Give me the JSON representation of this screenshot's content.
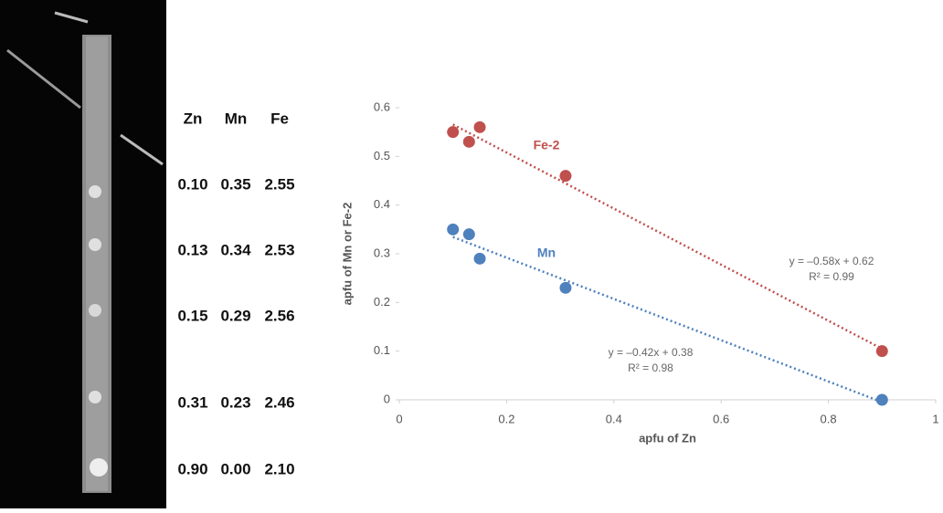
{
  "table": {
    "headers": [
      "Zn",
      "Mn",
      "Fe"
    ],
    "rows": [
      [
        "0.10",
        "0.35",
        "2.55"
      ],
      [
        "0.13",
        "0.34",
        "2.53"
      ],
      [
        "0.15",
        "0.29",
        "2.56"
      ],
      [
        "0.31",
        "0.23",
        "2.46"
      ],
      [
        "0.90",
        "0.00",
        "2.10"
      ]
    ]
  },
  "chart_data": {
    "type": "scatter",
    "x_label": "apfu of Zn",
    "y_label": "apfu of Mn or Fe-2",
    "xlim": [
      0,
      1
    ],
    "xticks": [
      0,
      0.2,
      0.4,
      0.6,
      0.8,
      1
    ],
    "ylim": [
      0,
      0.6
    ],
    "yticks": [
      0,
      0.1,
      0.2,
      0.3,
      0.4,
      0.5,
      0.6
    ],
    "trendline": "dotted",
    "series": [
      {
        "name": "Fe-2",
        "color": "#c0504d",
        "x": [
          0.1,
          0.13,
          0.15,
          0.31,
          0.9
        ],
        "values": [
          0.55,
          0.53,
          0.56,
          0.46,
          0.1
        ]
      },
      {
        "name": "Mn",
        "color": "#4f81bd",
        "x": [
          0.1,
          0.13,
          0.15,
          0.31,
          0.9
        ],
        "values": [
          0.35,
          0.34,
          0.29,
          0.23,
          0.0
        ]
      }
    ],
    "annotations": [
      "y = –0.58x + 0.62",
      "R² = 0.99",
      "y = –0.42x + 0.38",
      "R² = 0.98"
    ]
  }
}
